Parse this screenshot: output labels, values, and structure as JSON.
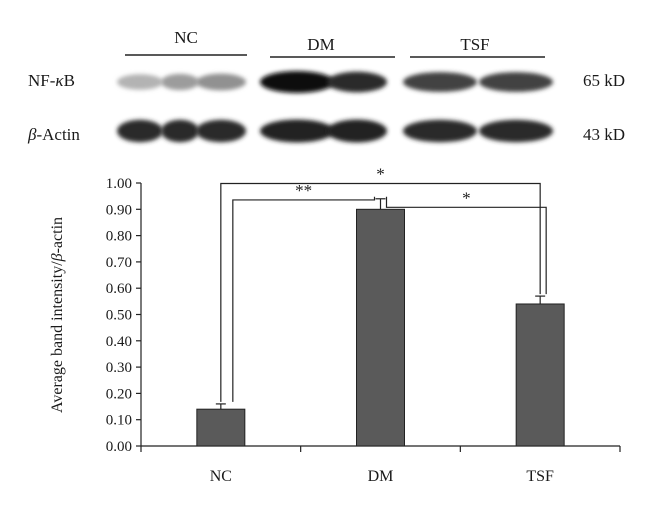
{
  "blot": {
    "groups": [
      "NC",
      "DM",
      "TSF"
    ],
    "rows": [
      {
        "label_main": "NF-",
        "label_greek": "κ",
        "label_tail": "B",
        "size": "65 kD"
      },
      {
        "label_main": "-Actin",
        "label_greek": "β",
        "label_tail": "",
        "size": "43 kD"
      }
    ],
    "band_intensity": {
      "nfkb": [
        0.25,
        0.35,
        0.4,
        1.0,
        0.85,
        0.75,
        0.75
      ],
      "actin": [
        0.85,
        0.85,
        0.85,
        0.9,
        0.9,
        0.85,
        0.85
      ]
    }
  },
  "chart_data": {
    "type": "bar",
    "categories": [
      "NC",
      "DM",
      "TSF"
    ],
    "values": [
      0.14,
      0.9,
      0.54
    ],
    "errors": [
      0.02,
      0.04,
      0.03
    ],
    "ylabel": "Average band intensity/β-actin",
    "ylabel_parts": {
      "pre": "Average band intensity/",
      "greek": "β",
      "post": "-actin"
    },
    "ylim": [
      0.0,
      1.0
    ],
    "yticks": [
      "0.00",
      "0.10",
      "0.20",
      "0.30",
      "0.40",
      "0.50",
      "0.60",
      "0.70",
      "0.80",
      "0.90",
      "1.00"
    ],
    "bar_color": "#5a5a5a",
    "significance": [
      {
        "from": "NC",
        "to": "DM",
        "label": "**"
      },
      {
        "from": "DM",
        "to": "TSF",
        "label": "*"
      },
      {
        "from": "NC",
        "to": "TSF",
        "label": "*"
      }
    ],
    "grid": false,
    "legend": "none"
  }
}
